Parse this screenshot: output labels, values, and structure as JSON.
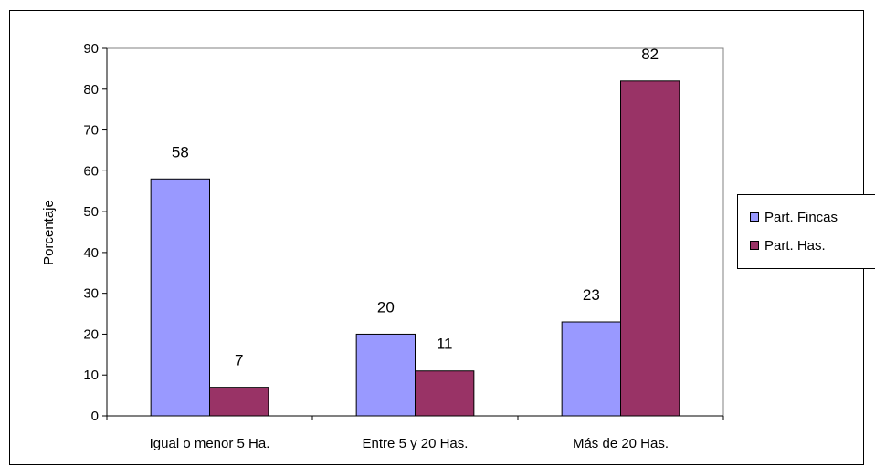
{
  "chart_data": {
    "type": "bar",
    "categories": [
      "Igual o menor 5 Ha.",
      "Entre 5 y 20 Has.",
      "Más de 20 Has."
    ],
    "series": [
      {
        "name": "Part. Fincas",
        "values": [
          58,
          20,
          23
        ],
        "color": "#9999ff"
      },
      {
        "name": "Part. Has.",
        "values": [
          7,
          11,
          82
        ],
        "color": "#993366"
      }
    ],
    "ylabel": "Porcentaje",
    "ylim": [
      0,
      90
    ],
    "yticks": [
      0,
      10,
      20,
      30,
      40,
      50,
      60,
      70,
      80,
      90
    ],
    "grid": false,
    "legend_position": "right",
    "data_labels": [
      [
        "58",
        "20",
        "23"
      ],
      [
        "7",
        "11",
        "82"
      ]
    ],
    "ytick_labels": [
      "0",
      "10",
      "20",
      "30",
      "40",
      "50",
      "60",
      "70",
      "80",
      "90"
    ]
  }
}
